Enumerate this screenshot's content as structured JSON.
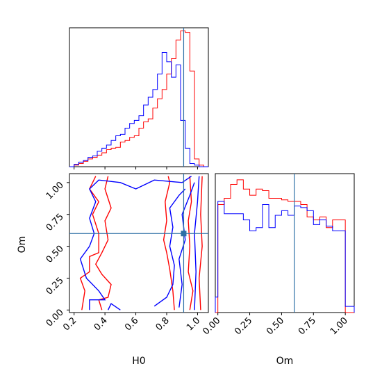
{
  "chart_data": [
    {
      "type": "histogram",
      "panel": "H0 marginal",
      "xlim": [
        0.17,
        1.07
      ],
      "truth_line": 0.91,
      "series": [
        {
          "color": "#ff0000",
          "bins": [
            0.17,
            0.2,
            0.23,
            0.26,
            0.29,
            0.32,
            0.35,
            0.38,
            0.41,
            0.44,
            0.47,
            0.5,
            0.53,
            0.56,
            0.59,
            0.62,
            0.65,
            0.68,
            0.71,
            0.74,
            0.77,
            0.8,
            0.83,
            0.86,
            0.89,
            0.92,
            0.95,
            0.98,
            1.01,
            1.04,
            1.07
          ],
          "values": [
            0.0,
            0.01,
            0.02,
            0.035,
            0.05,
            0.06,
            0.075,
            0.09,
            0.11,
            0.12,
            0.125,
            0.16,
            0.17,
            0.19,
            0.2,
            0.25,
            0.29,
            0.31,
            0.38,
            0.44,
            0.5,
            0.6,
            0.7,
            0.82,
            0.88,
            0.87,
            0.62,
            0.05,
            0.01,
            0.0
          ]
        },
        {
          "color": "#0000ff",
          "bins": [
            0.17,
            0.2,
            0.23,
            0.26,
            0.29,
            0.32,
            0.35,
            0.38,
            0.41,
            0.44,
            0.47,
            0.5,
            0.53,
            0.56,
            0.59,
            0.62,
            0.65,
            0.68,
            0.71,
            0.74,
            0.77,
            0.8,
            0.83,
            0.86,
            0.89,
            0.92,
            0.95,
            0.98,
            1.01,
            1.04,
            1.07
          ],
          "values": [
            0.0,
            0.015,
            0.03,
            0.04,
            0.06,
            0.07,
            0.1,
            0.12,
            0.14,
            0.17,
            0.2,
            0.21,
            0.25,
            0.28,
            0.3,
            0.33,
            0.4,
            0.45,
            0.5,
            0.6,
            0.74,
            0.68,
            0.58,
            0.66,
            0.3,
            0.12,
            0.02,
            0.01,
            0.0,
            0.0
          ]
        }
      ]
    },
    {
      "type": "contour",
      "panel": "H0 vs Om",
      "xlabel": "H0",
      "ylabel": "Om",
      "xlim": [
        0.17,
        1.07
      ],
      "ylim": [
        -0.02,
        1.07
      ],
      "xticks": [
        "0.2",
        "0.4",
        "0.6",
        "0.8",
        "1.0"
      ],
      "xtick_values": [
        0.2,
        0.4,
        0.6,
        0.8,
        1.0
      ],
      "yticks": [
        "0.00",
        "0.25",
        "0.50",
        "0.75",
        "1.00"
      ],
      "ytick_values": [
        0.0,
        0.25,
        0.5,
        0.75,
        1.0
      ],
      "truth_point": [
        0.91,
        0.6
      ],
      "series": [
        {
          "color": "#ff0000",
          "contours": [
            [
              [
                0.25,
                0.0
              ],
              [
                0.27,
                0.15
              ],
              [
                0.24,
                0.25
              ],
              [
                0.3,
                0.3
              ],
              [
                0.3,
                0.42
              ],
              [
                0.36,
                0.45
              ],
              [
                0.36,
                0.6
              ],
              [
                0.32,
                0.75
              ],
              [
                0.36,
                0.85
              ],
              [
                0.3,
                0.95
              ],
              [
                0.34,
                1.05
              ]
            ],
            [
              [
                0.38,
                0.0
              ],
              [
                0.36,
                0.08
              ],
              [
                0.42,
                0.1
              ],
              [
                0.44,
                0.2
              ],
              [
                0.38,
                0.28
              ],
              [
                0.34,
                0.36
              ],
              [
                0.38,
                0.45
              ],
              [
                0.42,
                0.55
              ],
              [
                0.4,
                0.7
              ],
              [
                0.44,
                0.8
              ],
              [
                0.4,
                0.95
              ],
              [
                0.42,
                1.05
              ]
            ],
            [
              [
                0.85,
                0.0
              ],
              [
                0.84,
                0.15
              ],
              [
                0.82,
                0.32
              ],
              [
                0.8,
                0.45
              ],
              [
                0.78,
                0.55
              ],
              [
                0.8,
                0.7
              ],
              [
                0.79,
                0.85
              ],
              [
                0.82,
                1.0
              ],
              [
                0.81,
                1.05
              ]
            ],
            [
              [
                0.95,
                0.0
              ],
              [
                0.97,
                0.15
              ],
              [
                0.94,
                0.3
              ],
              [
                0.95,
                0.5
              ],
              [
                0.94,
                0.7
              ],
              [
                0.96,
                0.85
              ],
              [
                0.95,
                1.05
              ]
            ],
            [
              [
                1.02,
                0.0
              ],
              [
                1.01,
                0.25
              ],
              [
                1.03,
                0.5
              ],
              [
                1.02,
                0.75
              ],
              [
                1.03,
                1.05
              ]
            ]
          ]
        },
        {
          "color": "#0000ff",
          "contours": [
            [
              [
                0.3,
                0.0
              ],
              [
                0.3,
                0.08
              ],
              [
                0.4,
                0.08
              ],
              [
                0.36,
                0.15
              ],
              [
                0.28,
                0.25
              ],
              [
                0.24,
                0.4
              ],
              [
                0.3,
                0.5
              ],
              [
                0.33,
                0.6
              ],
              [
                0.3,
                0.72
              ],
              [
                0.34,
                0.85
              ],
              [
                0.3,
                0.95
              ],
              [
                0.36,
                1.02
              ],
              [
                0.5,
                1.0
              ],
              [
                0.6,
                0.95
              ],
              [
                0.72,
                1.02
              ],
              [
                0.9,
                1.0
              ],
              [
                0.96,
                1.05
              ]
            ],
            [
              [
                0.42,
                0.0
              ],
              [
                0.44,
                0.05
              ],
              [
                0.5,
                0.0
              ]
            ],
            [
              [
                0.72,
                0.03
              ],
              [
                0.8,
                0.1
              ],
              [
                0.84,
                0.2
              ],
              [
                0.85,
                0.35
              ],
              [
                0.82,
                0.5
              ],
              [
                0.84,
                0.65
              ],
              [
                0.82,
                0.8
              ],
              [
                0.88,
                0.9
              ],
              [
                0.92,
                0.95
              ]
            ],
            [
              [
                0.88,
                0.02
              ],
              [
                0.9,
                0.2
              ],
              [
                0.88,
                0.4
              ],
              [
                0.92,
                0.55
              ],
              [
                0.9,
                0.75
              ],
              [
                0.95,
                0.9
              ],
              [
                0.98,
                1.0
              ]
            ],
            [
              [
                0.98,
                0.0
              ],
              [
                0.99,
                0.3
              ],
              [
                0.98,
                0.6
              ],
              [
                1.0,
                0.85
              ],
              [
                1.01,
                1.05
              ]
            ]
          ]
        }
      ]
    },
    {
      "type": "histogram",
      "panel": "Om marginal",
      "xlabel": "Om",
      "xlim": [
        -0.02,
        1.07
      ],
      "xticks": [
        "0.00",
        "0.25",
        "0.50",
        "0.75",
        "1.00"
      ],
      "xtick_values": [
        0.0,
        0.25,
        0.5,
        0.75,
        1.0
      ],
      "truth_line": 0.6,
      "series": [
        {
          "color": "#ff0000",
          "bins": [
            -0.02,
            0.0,
            0.05,
            0.1,
            0.15,
            0.2,
            0.25,
            0.3,
            0.35,
            0.4,
            0.45,
            0.5,
            0.55,
            0.6,
            0.65,
            0.7,
            0.75,
            0.8,
            0.85,
            0.9,
            0.95,
            1.0,
            1.07
          ],
          "values": [
            0.0,
            0.7,
            0.74,
            0.83,
            0.86,
            0.8,
            0.76,
            0.8,
            0.79,
            0.74,
            0.74,
            0.73,
            0.72,
            0.72,
            0.7,
            0.62,
            0.6,
            0.62,
            0.55,
            0.6,
            0.6,
            0.0
          ]
        },
        {
          "color": "#0000ff",
          "bins": [
            -0.02,
            0.0,
            0.05,
            0.1,
            0.15,
            0.2,
            0.25,
            0.3,
            0.35,
            0.4,
            0.45,
            0.5,
            0.55,
            0.6,
            0.65,
            0.7,
            0.75,
            0.8,
            0.85,
            0.9,
            0.95,
            1.0,
            1.07
          ],
          "values": [
            0.1,
            0.72,
            0.64,
            0.64,
            0.64,
            0.6,
            0.53,
            0.55,
            0.7,
            0.55,
            0.63,
            0.66,
            0.63,
            0.69,
            0.68,
            0.66,
            0.57,
            0.6,
            0.56,
            0.53,
            0.53,
            0.04
          ]
        }
      ]
    }
  ],
  "colors": {
    "truth": "#2c6fa5",
    "series_a": "#ff0000",
    "series_b": "#0000ff"
  }
}
